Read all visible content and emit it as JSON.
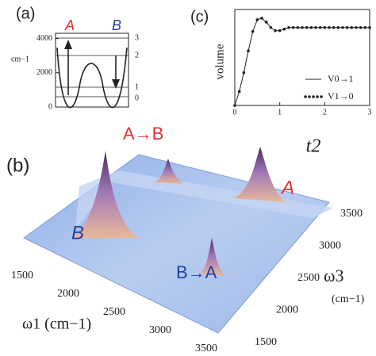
{
  "panel_a": {
    "label": "(a)",
    "well_left": "A",
    "well_right": "B",
    "unit": "cm−1",
    "ylim": [
      0,
      4300
    ],
    "yticks": [
      0,
      2000,
      4000
    ],
    "levels": [
      "0",
      "1",
      "2",
      "3"
    ]
  },
  "panel_b": {
    "label": "(b)",
    "annotation_top": "A→B",
    "annotation_bottom": "B→A",
    "peak_right": "A",
    "peak_left": "B",
    "w1_label": "ω1 (cm−1)",
    "w3_label": "ω3",
    "w3_unit": "(cm−1)",
    "w1_ticks": [
      1500,
      2000,
      2500,
      3000,
      3500
    ],
    "w3_ticks": [
      1500,
      2000,
      2500,
      3000,
      3500
    ]
  },
  "chart_data": {
    "type": "line",
    "panel_label": "(c)",
    "ylabel": "volume",
    "xlabel": "t2",
    "xlim": [
      0,
      3
    ],
    "xticks": [
      0,
      1,
      2,
      3
    ],
    "ylim": [
      0,
      1.15
    ],
    "x": [
      0,
      0.1,
      0.2,
      0.3,
      0.4,
      0.5,
      0.6,
      0.7,
      0.8,
      0.9,
      1.0,
      1.1,
      1.2,
      1.3,
      1.4,
      1.5,
      1.6,
      1.7,
      1.8,
      1.9,
      2.0,
      2.1,
      2.2,
      2.3,
      2.4,
      2.5,
      2.6,
      2.7,
      2.8,
      2.9,
      3.0
    ],
    "series": [
      {
        "name": "V0→1",
        "color": "#222222",
        "style": "solid",
        "values": [
          0,
          0.18,
          0.42,
          0.7,
          0.95,
          1.1,
          1.12,
          1.07,
          1.0,
          0.96,
          0.96,
          0.98,
          1.0,
          1.0,
          1.0,
          1.0,
          1.0,
          1.0,
          1.0,
          1.0,
          1.0,
          1.0,
          1.0,
          1.0,
          1.0,
          1.0,
          1.0,
          1.0,
          1.0,
          1.0,
          1.0
        ]
      },
      {
        "name": "V1→0",
        "color": "#222222",
        "style": "dotted",
        "values": [
          0,
          0.18,
          0.42,
          0.7,
          0.95,
          1.1,
          1.12,
          1.07,
          1.0,
          0.96,
          0.96,
          0.98,
          1.0,
          1.0,
          1.0,
          1.0,
          1.0,
          1.0,
          1.0,
          1.0,
          1.0,
          1.0,
          1.0,
          1.0,
          1.0,
          1.0,
          1.0,
          1.0,
          1.0,
          1.0,
          1.0
        ]
      }
    ]
  }
}
